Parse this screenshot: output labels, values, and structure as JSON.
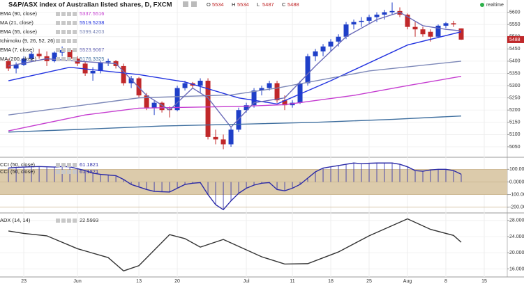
{
  "header": {
    "title": "S&P/ASX index of Australian listed shares, D, FXCM",
    "ohlc_labels": [
      "O",
      "H",
      "L",
      "C"
    ],
    "ohlc_values": [
      5534,
      5534,
      5487,
      5488
    ],
    "realtime": "realtime"
  },
  "chart_data": [
    {
      "type": "candlestick",
      "up_color": "#1f3fc8",
      "down_color": "#c0282a",
      "xlim": [
        -1.1,
        65
      ],
      "ylim": [
        5010,
        5650
      ],
      "yticks": [
        5050,
        5100,
        5150,
        5200,
        5250,
        5300,
        5350,
        5400,
        5450,
        5500,
        5550,
        5600
      ],
      "xticks": [
        {
          "value": 2,
          "label": "23"
        },
        {
          "value": 9,
          "label": "Jun"
        },
        {
          "value": 17,
          "label": "13"
        },
        {
          "value": 22,
          "label": "20"
        },
        {
          "value": 31,
          "label": "Jul"
        },
        {
          "value": 37,
          "label": "11"
        },
        {
          "value": 42,
          "label": "18"
        },
        {
          "value": 47,
          "label": "25"
        },
        {
          "value": 52,
          "label": "Aug"
        },
        {
          "value": 57,
          "label": "8"
        },
        {
          "value": 62,
          "label": "15"
        }
      ],
      "grid": true,
      "open": [
        5400,
        5370,
        5385,
        5410,
        5430,
        5420,
        5400,
        5435,
        5445,
        5410,
        5390,
        5350,
        5360,
        5395,
        5400,
        5380,
        5310,
        5330,
        5260,
        5210,
        5230,
        5205,
        5200,
        5290,
        5310,
        5300,
        5320,
        5090,
        5080,
        5060,
        5120,
        5200,
        5220,
        5280,
        5290,
        5310,
        5240,
        5220,
        5230,
        5310,
        5420,
        5440,
        5460,
        5480,
        5500,
        5550,
        5560,
        5565,
        5580,
        5590,
        5600,
        5605,
        5590,
        5540,
        5530,
        5520,
        5500,
        5545,
        5555,
        5534
      ],
      "high": [
        5410,
        5395,
        5420,
        5440,
        5450,
        5440,
        5440,
        5460,
        5450,
        5420,
        5400,
        5375,
        5400,
        5410,
        5405,
        5390,
        5340,
        5335,
        5270,
        5240,
        5235,
        5215,
        5300,
        5320,
        5315,
        5330,
        5330,
        5120,
        5100,
        5130,
        5210,
        5230,
        5290,
        5300,
        5320,
        5320,
        5260,
        5240,
        5320,
        5430,
        5450,
        5470,
        5490,
        5510,
        5560,
        5570,
        5580,
        5590,
        5600,
        5610,
        5640,
        5620,
        5595,
        5560,
        5540,
        5530,
        5550,
        5560,
        5565,
        5534
      ],
      "low": [
        5360,
        5350,
        5380,
        5400,
        5410,
        5380,
        5395,
        5420,
        5400,
        5380,
        5340,
        5320,
        5350,
        5380,
        5370,
        5300,
        5290,
        5250,
        5200,
        5180,
        5190,
        5170,
        5195,
        5280,
        5290,
        5270,
        5080,
        5060,
        5040,
        5050,
        5110,
        5190,
        5210,
        5260,
        5280,
        5230,
        5200,
        5210,
        5225,
        5300,
        5400,
        5420,
        5440,
        5460,
        5490,
        5530,
        5540,
        5550,
        5560,
        5570,
        5590,
        5580,
        5530,
        5500,
        5500,
        5480,
        5495,
        5535,
        5540,
        5487
      ],
      "close": [
        5370,
        5385,
        5410,
        5430,
        5420,
        5400,
        5435,
        5445,
        5410,
        5390,
        5350,
        5360,
        5395,
        5400,
        5380,
        5310,
        5330,
        5260,
        5210,
        5230,
        5200,
        5200,
        5290,
        5310,
        5300,
        5320,
        5090,
        5080,
        5060,
        5120,
        5200,
        5220,
        5280,
        5290,
        5310,
        5240,
        5220,
        5230,
        5310,
        5420,
        5440,
        5460,
        5480,
        5500,
        5550,
        5560,
        5565,
        5580,
        5590,
        5600,
        5605,
        5590,
        5540,
        5530,
        5510,
        5500,
        5545,
        5555,
        5550,
        5488
      ],
      "series": [
        {
          "name": "EMA (90, close)",
          "color": "#c53cd0",
          "last_value": 5337.5516,
          "x": [
            0,
            10,
            17,
            30,
            36,
            45,
            52,
            59
          ],
          "values": [
            5115,
            5180,
            5208,
            5215,
            5222,
            5260,
            5300,
            5338
          ]
        },
        {
          "name": "MA (21, close)",
          "color": "#2233e0",
          "last_value": 5519.5238,
          "x": [
            0,
            8,
            17,
            23,
            30,
            35,
            42,
            52,
            59
          ],
          "values": [
            5320,
            5375,
            5345,
            5315,
            5250,
            5225,
            5320,
            5466,
            5520
          ]
        },
        {
          "name": "EMA (55, close)",
          "color": "#7d88b8",
          "last_value": 5399.4203,
          "x": [
            0,
            17,
            29,
            35,
            47,
            59
          ],
          "values": [
            5180,
            5250,
            5262,
            5290,
            5360,
            5400
          ]
        },
        {
          "name": "Ichimoku (9, 26, 52, 26)"
        },
        {
          "name": "EMA (7, close)",
          "color": "#6a6ab8",
          "last_value": 5523.9067,
          "x": [
            0,
            5,
            9,
            14,
            18,
            21,
            24,
            26,
            29,
            32,
            36,
            40,
            44,
            48,
            51,
            54,
            57,
            59
          ],
          "values": [
            5380,
            5410,
            5400,
            5390,
            5260,
            5200,
            5290,
            5250,
            5130,
            5230,
            5250,
            5380,
            5500,
            5570,
            5600,
            5545,
            5530,
            5524
          ]
        },
        {
          "name": "MA (200, close)",
          "color": "#3f6f9f",
          "last_value": 5176.3325,
          "x": [
            0,
            10,
            20,
            30,
            40,
            50,
            59
          ],
          "values": [
            5110,
            5122,
            5135,
            5142,
            5150,
            5162,
            5176
          ]
        }
      ]
    },
    {
      "type": "line",
      "ylim": [
        -240,
        190
      ],
      "yticks": [
        {
          "value": 100,
          "label": "100.000"
        },
        {
          "value": 0,
          "label": "0.0000"
        },
        {
          "value": -100,
          "label": "-100.00"
        },
        {
          "value": -200,
          "label": "-200.00"
        }
      ],
      "band": [
        -100,
        100
      ],
      "band_color": "#dccbab",
      "hatch": true,
      "series": [
        {
          "name": "CCI (50, close)",
          "color": "#2a2aa8",
          "last_value": 61.1821,
          "values": [
            110,
            115,
            118,
            120,
            122,
            120,
            118,
            122,
            120,
            105,
            90,
            70,
            60,
            55,
            50,
            20,
            -20,
            -40,
            -60,
            -75,
            -78,
            -80,
            -50,
            -20,
            -10,
            -5,
            -100,
            -180,
            -220,
            -150,
            -90,
            -50,
            -25,
            -10,
            -5,
            -60,
            -70,
            -50,
            -20,
            30,
            80,
            110,
            120,
            130,
            140,
            150,
            145,
            148,
            150,
            150,
            150,
            140,
            120,
            90,
            85,
            95,
            100,
            100,
            90,
            61.1821
          ]
        }
      ],
      "ghost_legend": {
        "name": "CCI (50, close)",
        "value": 61.1821
      }
    },
    {
      "type": "line",
      "ylim": [
        14,
        29.7
      ],
      "yticks": [
        {
          "value": 28,
          "label": "28.0000"
        },
        {
          "value": 24,
          "label": "24.0000"
        },
        {
          "value": 20,
          "label": "20.0000"
        },
        {
          "value": 16,
          "label": "16.0000"
        }
      ],
      "series": [
        {
          "name": "ADX (14, 14)",
          "color": "#333333",
          "last_value": 22.5993,
          "x": [
            0,
            2,
            5,
            9,
            13,
            15,
            17,
            21,
            23,
            25,
            28,
            33,
            36,
            39,
            43,
            47,
            52,
            55,
            58,
            59
          ],
          "values": [
            25.4,
            24.8,
            24.2,
            21.0,
            18.8,
            15.5,
            16.8,
            24.5,
            23.5,
            21.4,
            23.3,
            19.0,
            17.2,
            17.3,
            20.2,
            24.2,
            28.4,
            25.8,
            24.3,
            22.5993
          ]
        }
      ]
    }
  ]
}
